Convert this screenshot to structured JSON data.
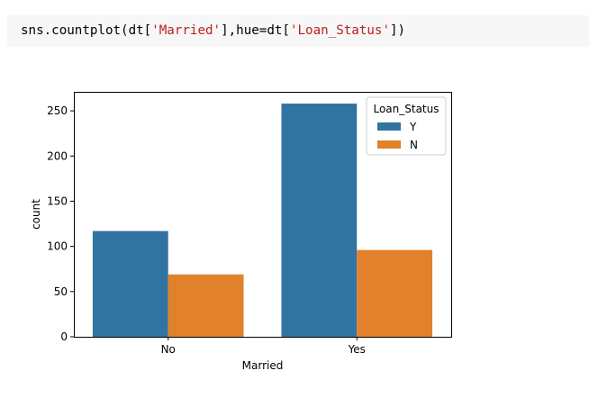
{
  "cell": {
    "code_prefix": "sns.countplot(dt[",
    "code_str1": "'Married'",
    "code_mid": "],hue=dt[",
    "code_str2": "'Loan_Status'",
    "code_suffix": "])"
  },
  "colors": {
    "series_Y": "#3274a1",
    "series_N": "#e1812c",
    "string": "#ba2121"
  },
  "chart_data": {
    "type": "bar",
    "title": "",
    "xlabel": "Married",
    "ylabel": "count",
    "categories": [
      "No",
      "Yes"
    ],
    "series": [
      {
        "name": "Y",
        "values": [
          117,
          258
        ],
        "color": "#3274a1"
      },
      {
        "name": "N",
        "values": [
          69,
          96
        ],
        "color": "#e1812c"
      }
    ],
    "ylim": [
      0,
      271
    ],
    "yticks": [
      0,
      50,
      100,
      150,
      200,
      250
    ],
    "legend": {
      "title": "Loan_Status",
      "placement": "top-right"
    },
    "grid": false
  }
}
